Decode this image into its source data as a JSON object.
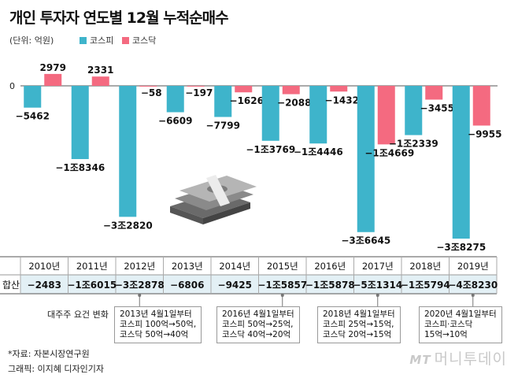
{
  "title": "개인 투자자 연도별 12월 누적순매수",
  "unit_label": "(단위: 억원)",
  "colors": {
    "kospi": "#3eb4cb",
    "kosdaq": "#f46a80",
    "table_bg": "#e3f0f5",
    "table_header_bg": "#ffffff"
  },
  "chart_data": {
    "type": "bar",
    "title": "개인 투자자 연도별 12월 누적순매수",
    "ylabel": "억원",
    "zero_label": "0",
    "categories": [
      "2010년",
      "2011년",
      "2012년",
      "2013년",
      "2014년",
      "2015년",
      "2016년",
      "2017년",
      "2018년",
      "2019년"
    ],
    "series": [
      {
        "name": "코스피",
        "values": [
          -5462,
          -18346,
          -32820,
          -6609,
          -7799,
          -13769,
          -14446,
          -36645,
          -12339,
          -38275
        ],
        "labels": [
          "−5462",
          "−1조8346",
          "−3조2820",
          "−6609",
          "−7799",
          "−1조3769",
          "−1조4446",
          "−3조6645",
          "−1조2339",
          "−3조8275"
        ]
      },
      {
        "name": "코스닥",
        "values": [
          2979,
          2331,
          -58,
          -197,
          -1626,
          -2088,
          -1432,
          -14669,
          -3455,
          -9955
        ],
        "labels": [
          "2979",
          "2331",
          "−58",
          "−197",
          "−1626",
          "−2088",
          "−1432",
          "−1조4669",
          "−3455",
          "−9955"
        ]
      }
    ],
    "totals_label": "합산",
    "totals": [
      "−2483",
      "−1조6015",
      "−3조2878",
      "−6806",
      "−9425",
      "−1조5857",
      "−1조5878",
      "−5조1314",
      "−1조5794",
      "−4조8230"
    ],
    "ylim": [
      -40000,
      4000
    ]
  },
  "conditions": {
    "label": "대주주 요건 변화",
    "notes": [
      {
        "year_index": 2,
        "text": "2013년 4월1일부터\n코스피 100억→50억,\n코스닥 50억→40억"
      },
      {
        "year_index": 5,
        "text": "2016년 4월1일부터\n코스피 50억→25억,\n코스닥 40억→20억"
      },
      {
        "year_index": 7,
        "text": "2018년 4월1일부터\n코스피 25억→15억,\n코스닥 20억→15억"
      },
      {
        "year_index": 9,
        "text": "2020년 4월1일부터\n코스피·코스닥\n15억→10억"
      }
    ]
  },
  "source": "*자료: 자본시장연구원",
  "credit": "그래픽: 이지혜 디자인기자",
  "logo": {
    "mark": "MT",
    "name": "머니투데이"
  }
}
